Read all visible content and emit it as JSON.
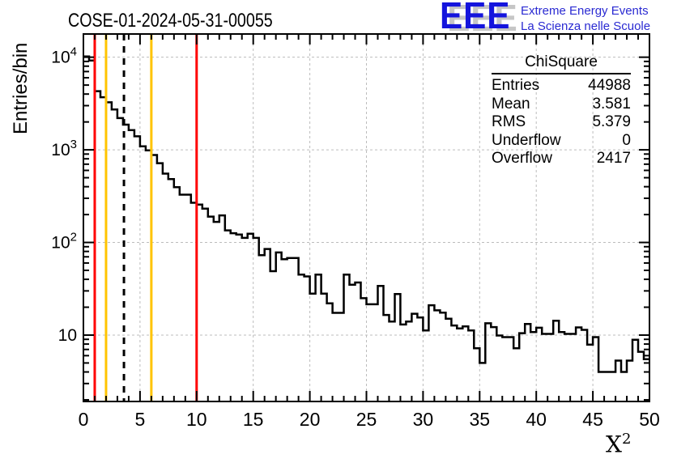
{
  "header": {
    "title": "COSE-01-2024-05-31-00055"
  },
  "logo": {
    "acronym": "EEE",
    "line1": "Extreme Energy Events",
    "line2": "La Scienza nelle Scuole",
    "acronym_color": "#1414dd",
    "text_color": "#2a2ad2",
    "shadow_color": "#c6c6c6"
  },
  "stats": {
    "title": "ChiSquare",
    "rows": [
      {
        "label": "Entries",
        "value": "44988"
      },
      {
        "label": "Mean",
        "value": "3.581"
      },
      {
        "label": "RMS",
        "value": "5.379"
      },
      {
        "label": "Underflow",
        "value": "0"
      },
      {
        "label": "Overflow",
        "value": "2417"
      }
    ]
  },
  "chart_data": {
    "type": "bar",
    "subtype": "step-histogram",
    "title": "COSE-01-2024-05-31-00055",
    "xlabel": {
      "base": "X",
      "sup": "2"
    },
    "ylabel": "Entries/bin",
    "x_range": [
      0,
      50
    ],
    "bin_width": 0.5,
    "y_scale": "log",
    "y_range": [
      1.92,
      17800
    ],
    "x_major_ticks": [
      0,
      5,
      10,
      15,
      20,
      25,
      30,
      35,
      40,
      45,
      50
    ],
    "x_minor_step": 1,
    "y_major_ticks": [
      10,
      100,
      1000,
      10000
    ],
    "grid": true,
    "grid_color": "#bcbcbc",
    "line_color": "#000000",
    "values": [
      10200,
      9200,
      4300,
      3700,
      3260,
      2730,
      2200,
      1870,
      1630,
      1400,
      1090,
      986,
      880,
      718,
      553,
      484,
      395,
      328,
      328,
      268,
      256,
      232,
      190,
      167,
      196,
      135,
      126,
      122,
      112,
      124,
      112,
      73,
      85,
      49,
      78,
      66,
      68,
      68,
      45,
      43,
      28,
      45,
      28,
      22,
      17.4,
      17.4,
      45,
      35,
      37,
      25,
      21.5,
      21.5,
      34,
      16.5,
      14,
      27.7,
      13,
      14,
      17,
      15.5,
      11.2,
      21,
      18.5,
      17.5,
      15,
      12.7,
      11.8,
      12.4,
      11.2,
      7.2,
      5,
      13.4,
      12.2,
      9.9,
      9.5,
      9.5,
      7.2,
      10.5,
      13.2,
      10.8,
      12,
      10.3,
      10.3,
      14.3,
      10.8,
      10.3,
      10.3,
      12.1,
      11.4,
      7.9,
      9.5,
      4,
      4,
      4,
      5.3,
      4,
      5.3,
      8.9,
      6.6,
      5.5
    ],
    "markers": [
      {
        "x": 1,
        "color": "#ff0000",
        "style": "solid",
        "width": 3
      },
      {
        "x": 2,
        "color": "#ffc400",
        "style": "solid",
        "width": 3
      },
      {
        "x": 3.581,
        "color": "#000000",
        "style": "dashed",
        "width": 3
      },
      {
        "x": 6,
        "color": "#ffc400",
        "style": "solid",
        "width": 3
      },
      {
        "x": 10,
        "color": "#ff0000",
        "style": "solid",
        "width": 3
      }
    ]
  }
}
